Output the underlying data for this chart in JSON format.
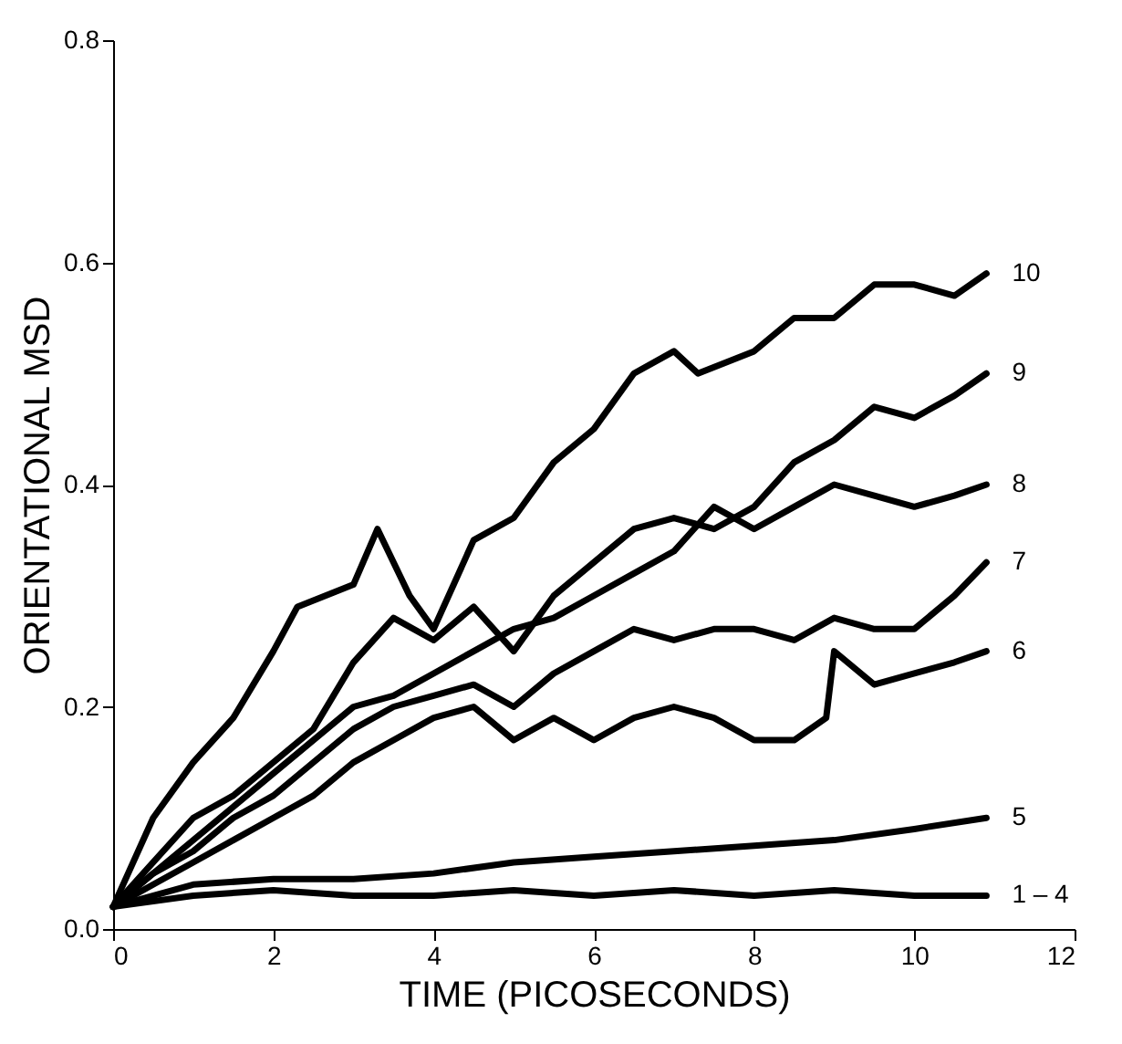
{
  "chart_data": {
    "type": "line",
    "xlabel": "TIME  (PICOSECONDS)",
    "ylabel": "ORIENTATIONAL  MSD",
    "xlim": [
      0,
      12
    ],
    "ylim": [
      0,
      0.8
    ],
    "xticks": [
      0,
      2,
      4,
      6,
      8,
      10,
      12
    ],
    "yticks": [
      {
        "value": 0,
        "label": "0.0"
      },
      {
        "value": 0.2,
        "label": "0.2"
      },
      {
        "value": 0.4,
        "label": "0.4"
      },
      {
        "value": 0.6,
        "label": "0.6"
      },
      {
        "value": 0.8,
        "label": "0.8"
      }
    ],
    "grid": false,
    "marker": "none",
    "line_style": "solid",
    "series": [
      {
        "name": "10",
        "color": "#000000",
        "x": [
          0,
          0.5,
          1,
          1.5,
          2,
          2.3,
          3,
          3.3,
          3.7,
          4,
          4.5,
          5,
          5.5,
          6,
          6.5,
          7,
          7.3,
          8,
          8.5,
          9,
          9.5,
          10,
          10.5,
          10.9
        ],
        "values": [
          0.02,
          0.1,
          0.15,
          0.19,
          0.25,
          0.29,
          0.31,
          0.36,
          0.3,
          0.27,
          0.35,
          0.37,
          0.42,
          0.45,
          0.5,
          0.52,
          0.5,
          0.52,
          0.55,
          0.55,
          0.58,
          0.58,
          0.57,
          0.59
        ]
      },
      {
        "name": "9",
        "color": "#000000",
        "x": [
          0,
          0.5,
          1,
          1.5,
          2,
          2.5,
          3,
          3.5,
          4,
          4.5,
          5,
          5.5,
          6,
          6.5,
          7,
          7.5,
          8,
          8.5,
          9,
          9.5,
          10,
          10.5,
          10.9
        ],
        "values": [
          0.02,
          0.06,
          0.1,
          0.12,
          0.15,
          0.18,
          0.24,
          0.28,
          0.26,
          0.29,
          0.25,
          0.3,
          0.33,
          0.36,
          0.37,
          0.36,
          0.38,
          0.42,
          0.44,
          0.47,
          0.46,
          0.48,
          0.5
        ]
      },
      {
        "name": "8",
        "color": "#000000",
        "x": [
          0,
          0.5,
          1,
          1.5,
          2,
          2.5,
          3,
          3.5,
          4,
          4.5,
          5,
          5.5,
          6,
          6.5,
          7,
          7.5,
          8,
          8.5,
          9,
          9.5,
          10,
          10.5,
          10.9
        ],
        "values": [
          0.02,
          0.05,
          0.08,
          0.11,
          0.14,
          0.17,
          0.2,
          0.21,
          0.23,
          0.25,
          0.27,
          0.28,
          0.3,
          0.32,
          0.34,
          0.38,
          0.36,
          0.38,
          0.4,
          0.39,
          0.38,
          0.39,
          0.4
        ]
      },
      {
        "name": "7",
        "color": "#000000",
        "x": [
          0,
          0.5,
          1,
          1.5,
          2,
          2.5,
          3,
          3.5,
          4,
          4.5,
          5,
          5.5,
          6,
          6.5,
          7,
          7.5,
          8,
          8.5,
          9,
          9.5,
          10,
          10.5,
          10.9
        ],
        "values": [
          0.02,
          0.05,
          0.07,
          0.1,
          0.12,
          0.15,
          0.18,
          0.2,
          0.21,
          0.22,
          0.2,
          0.23,
          0.25,
          0.27,
          0.26,
          0.27,
          0.27,
          0.26,
          0.28,
          0.27,
          0.27,
          0.3,
          0.33
        ]
      },
      {
        "name": "6",
        "color": "#000000",
        "x": [
          0,
          0.5,
          1,
          1.5,
          2,
          2.5,
          3,
          3.5,
          4,
          4.5,
          5,
          5.5,
          6,
          6.5,
          7,
          7.5,
          8,
          8.5,
          8.9,
          9,
          9.5,
          10,
          10.5,
          10.9
        ],
        "values": [
          0.02,
          0.04,
          0.06,
          0.08,
          0.1,
          0.12,
          0.15,
          0.17,
          0.19,
          0.2,
          0.17,
          0.19,
          0.17,
          0.19,
          0.2,
          0.19,
          0.17,
          0.17,
          0.19,
          0.25,
          0.22,
          0.23,
          0.24,
          0.25
        ]
      },
      {
        "name": "5",
        "color": "#000000",
        "x": [
          0,
          1,
          2,
          3,
          4,
          5,
          6,
          7,
          8,
          9,
          10,
          10.9
        ],
        "values": [
          0.02,
          0.04,
          0.045,
          0.045,
          0.05,
          0.06,
          0.065,
          0.07,
          0.075,
          0.08,
          0.09,
          0.1
        ]
      },
      {
        "name": "1 – 4",
        "color": "#000000",
        "x": [
          0,
          1,
          2,
          3,
          4,
          5,
          6,
          7,
          8,
          9,
          10,
          10.9
        ],
        "values": [
          0.02,
          0.03,
          0.035,
          0.03,
          0.03,
          0.035,
          0.03,
          0.035,
          0.03,
          0.035,
          0.03,
          0.03
        ]
      }
    ]
  }
}
